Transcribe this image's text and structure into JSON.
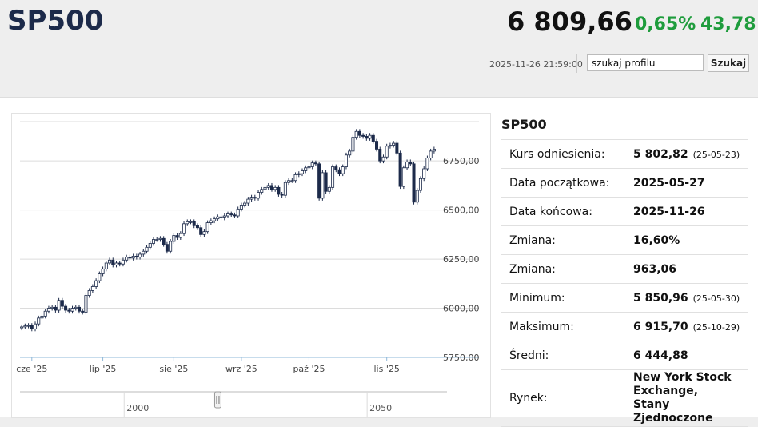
{
  "header": {
    "title": "SP500",
    "price": "6 809,66",
    "change_pct": "0,65%",
    "change_abs": "43,78",
    "timestamp": "2025-11-26 21:59:00",
    "search_value": "szukaj profilu",
    "search_button": "Szukaj"
  },
  "colors": {
    "up": "#1e9c3c",
    "down_candle": "#1c2a4a",
    "navigator_line": "#8fb8d8"
  },
  "info": {
    "title": "SP500",
    "rows": [
      {
        "label": "Kurs odniesienia:",
        "value": "5 802,82",
        "date": "(25-05-23)"
      },
      {
        "label": "Data początkowa:",
        "value": "2025-05-27"
      },
      {
        "label": "Data końcowa:",
        "value": "2025-11-26"
      },
      {
        "label": "Zmiana:",
        "value": "16,60%"
      },
      {
        "label": "Zmiana:",
        "value": "963,06"
      },
      {
        "label": "Minimum:",
        "value": "5 850,96",
        "date": "(25-05-30)"
      },
      {
        "label": "Maksimum:",
        "value": "6 915,70",
        "date": "(25-10-29)"
      },
      {
        "label": "Średni:",
        "value": "6 444,88"
      },
      {
        "label": "Rynek:",
        "value_lines": [
          "New York Stock",
          "Exchange,",
          "Stany Zjednoczone"
        ]
      }
    ]
  },
  "chart_data": {
    "type": "candlestick",
    "y_axis_position": "right",
    "ylim": [
      5750,
      6950
    ],
    "y_ticks": [
      {
        "value": 6750,
        "label": "6750,00"
      },
      {
        "value": 6500,
        "label": "6500,00"
      },
      {
        "value": 6250,
        "label": "6250,00"
      },
      {
        "value": 6000,
        "label": "6000,00"
      },
      {
        "value": 5750,
        "label": "5750,00"
      }
    ],
    "x_ticks": [
      {
        "index": 3,
        "label": "cze '25"
      },
      {
        "index": 24,
        "label": "lip '25"
      },
      {
        "index": 45,
        "label": "sie '25"
      },
      {
        "index": 65,
        "label": "wrz '25"
      },
      {
        "index": 85,
        "label": "paź '25"
      },
      {
        "index": 108,
        "label": "lis '25"
      }
    ],
    "grid": true,
    "close": [
      5905,
      5910,
      5912,
      5895,
      5920,
      5950,
      5960,
      5985,
      6000,
      6005,
      5990,
      6040,
      6010,
      5990,
      5985,
      6000,
      6005,
      5985,
      5980,
      6065,
      6090,
      6110,
      6140,
      6175,
      6200,
      6230,
      6245,
      6220,
      6230,
      6225,
      6245,
      6260,
      6255,
      6265,
      6260,
      6275,
      6290,
      6310,
      6330,
      6350,
      6350,
      6355,
      6325,
      6290,
      6340,
      6370,
      6360,
      6380,
      6430,
      6440,
      6440,
      6420,
      6410,
      6375,
      6390,
      6435,
      6445,
      6455,
      6465,
      6460,
      6470,
      6480,
      6475,
      6470,
      6505,
      6525,
      6535,
      6555,
      6565,
      6560,
      6590,
      6605,
      6615,
      6625,
      6605,
      6615,
      6580,
      6575,
      6640,
      6650,
      6650,
      6680,
      6685,
      6700,
      6715,
      6720,
      6740,
      6735,
      6560,
      6690,
      6595,
      6615,
      6720,
      6705,
      6685,
      6720,
      6780,
      6800,
      6870,
      6900,
      6880,
      6875,
      6865,
      6880,
      6850,
      6810,
      6750,
      6770,
      6825,
      6830,
      6840,
      6790,
      6620,
      6715,
      6745,
      6735,
      6540,
      6600,
      6660,
      6710,
      6765,
      6800,
      6810
    ],
    "navigator": {
      "labels": [
        {
          "index": 30,
          "label": "2000"
        },
        {
          "index": 100,
          "label": "2050"
        }
      ],
      "handle_index": 57
    }
  }
}
